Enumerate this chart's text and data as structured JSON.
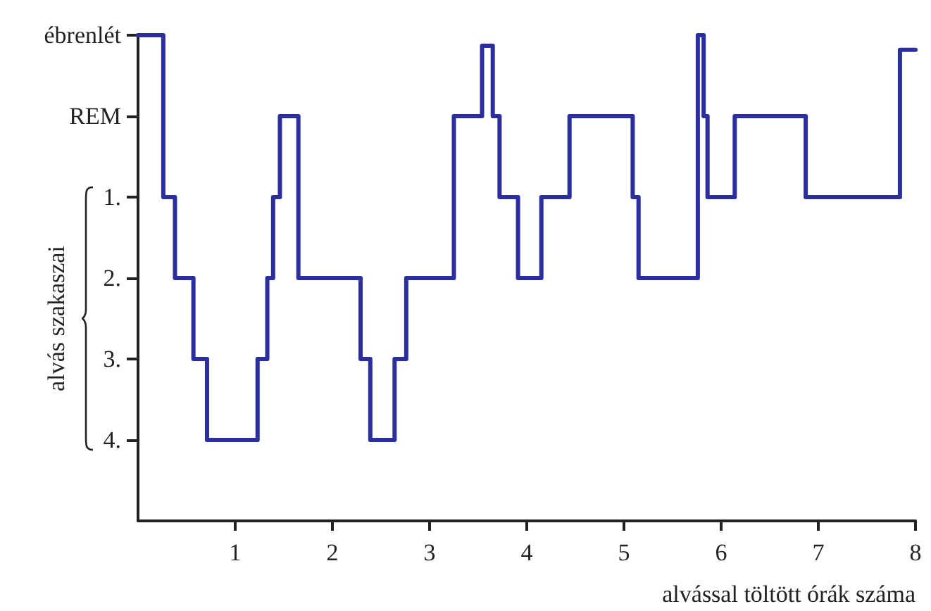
{
  "chart_data": {
    "type": "step",
    "xlabel": "alvással töltött órák száma",
    "ylabel": "alvás szakaszai",
    "x": [
      0,
      0.26,
      0.38,
      0.57,
      0.71,
      1.23,
      1.33,
      1.39,
      1.46,
      1.65,
      2.29,
      2.39,
      2.64,
      2.76,
      3.25,
      3.54,
      3.65,
      3.72,
      3.91,
      4.15,
      4.44,
      5.09,
      5.15,
      5.76,
      5.82,
      5.86,
      6.14,
      6.87,
      7.84,
      8
    ],
    "series": [
      {
        "color": "#2b2e9e",
        "values": [
          -1,
          1,
          2,
          3,
          4,
          3,
          2,
          1,
          0,
          2,
          3,
          4,
          3,
          2,
          0,
          -0.87,
          0,
          1,
          2,
          1,
          0,
          1,
          2,
          -1,
          0,
          1,
          0,
          1,
          -0.82,
          -0.82
        ]
      }
    ],
    "ylim": [
      5,
      -1
    ],
    "yticks": [
      {
        "value": -1,
        "label": "ébrenlét"
      },
      {
        "value": 0,
        "label": "REM"
      },
      {
        "value": 1,
        "label": "1."
      },
      {
        "value": 2,
        "label": "2."
      },
      {
        "value": 3,
        "label": "3."
      },
      {
        "value": 4,
        "label": "4."
      }
    ],
    "xlim": [
      0,
      8
    ],
    "xticks": [
      1,
      2,
      3,
      4,
      5,
      6,
      7,
      8
    ],
    "grid": false,
    "marker": "none",
    "line_style": "solid"
  }
}
